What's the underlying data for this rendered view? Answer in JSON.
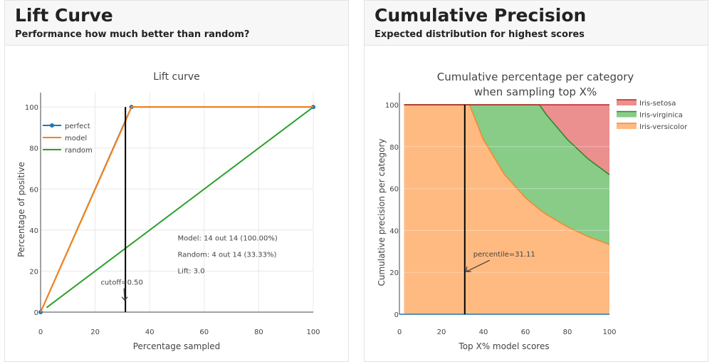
{
  "cards": [
    {
      "title": "Lift Curve",
      "subtitle": "Performance how much better than random?"
    },
    {
      "title": "Cumulative Precision",
      "subtitle": "Expected distribution for highest scores"
    }
  ],
  "chart_data": [
    {
      "type": "line",
      "title": "Lift curve",
      "xlabel": "Percentage sampled",
      "ylabel": "Percentage of positive",
      "xlim": [
        0,
        100
      ],
      "ylim": [
        0,
        107
      ],
      "xticks": [
        0,
        20,
        40,
        60,
        80,
        100
      ],
      "yticks": [
        0,
        20,
        40,
        60,
        80,
        100
      ],
      "grid": true,
      "legend_position": "top-left",
      "series": [
        {
          "name": "perfect",
          "color": "#1f77b4",
          "markers": true,
          "x": [
            0,
            33.33,
            100
          ],
          "y": [
            0,
            100,
            100
          ]
        },
        {
          "name": "model",
          "color": "#ff7f0e",
          "x": [
            0,
            31.11,
            33.33,
            100
          ],
          "y": [
            0,
            93,
            100,
            100
          ]
        },
        {
          "name": "random",
          "color": "#2ca02c",
          "x": [
            2.2,
            100
          ],
          "y": [
            2.2,
            100
          ]
        }
      ],
      "cutoff_line": {
        "x": 31.11,
        "y_range": [
          0,
          100
        ],
        "color": "#000000"
      },
      "annotations": [
        {
          "text": "cutoff=0.50",
          "x": 31.11,
          "y": 5,
          "arrow": true
        },
        {
          "text": "Model: 14 out 14 (100.00%)",
          "x": 50,
          "y": 35
        },
        {
          "text": "Random: 4 out 14 (33.33%)",
          "x": 50,
          "y": 27
        },
        {
          "text": "Lift: 3.0",
          "x": 50,
          "y": 19
        }
      ]
    },
    {
      "type": "area",
      "stacked": true,
      "title": "Cumulative percentage per category",
      "title_line2": "when sampling top X%",
      "xlabel": "Top X% model scores",
      "ylabel": "Cumulative precision per category",
      "xlim": [
        0,
        100
      ],
      "ylim": [
        0,
        100
      ],
      "xticks": [
        0,
        20,
        40,
        60,
        80,
        100
      ],
      "yticks": [
        0,
        20,
        40,
        60,
        80,
        100
      ],
      "grid": true,
      "legend_position": "top-right",
      "x": [
        2.2,
        10,
        20,
        30,
        31.11,
        33.33,
        40,
        50,
        60,
        66.67,
        70,
        80,
        90,
        100
      ],
      "series": [
        {
          "name": "Iris-versicolor",
          "color": "#ffa050",
          "values": [
            100,
            100,
            100,
            100,
            100,
            100,
            83.3,
            66.7,
            55.6,
            50.0,
            47.6,
            41.7,
            37.0,
            33.3
          ]
        },
        {
          "name": "Iris-virginica",
          "color": "#5ab95a",
          "values": [
            0,
            0,
            0,
            0,
            0,
            0,
            16.7,
            33.3,
            44.4,
            50.0,
            47.6,
            41.7,
            37.0,
            33.3
          ]
        },
        {
          "name": "Iris-setosa",
          "color": "#e46464",
          "values": [
            0,
            0,
            0,
            0,
            0,
            0,
            0,
            0,
            0,
            0,
            4.8,
            16.6,
            26.0,
            33.4
          ]
        }
      ],
      "cutoff_line": {
        "x": 31.11,
        "color": "#000000"
      },
      "annotations": [
        {
          "text": "percentile=31.11",
          "x": 31.11,
          "y": 20,
          "arrow": true
        }
      ]
    }
  ]
}
